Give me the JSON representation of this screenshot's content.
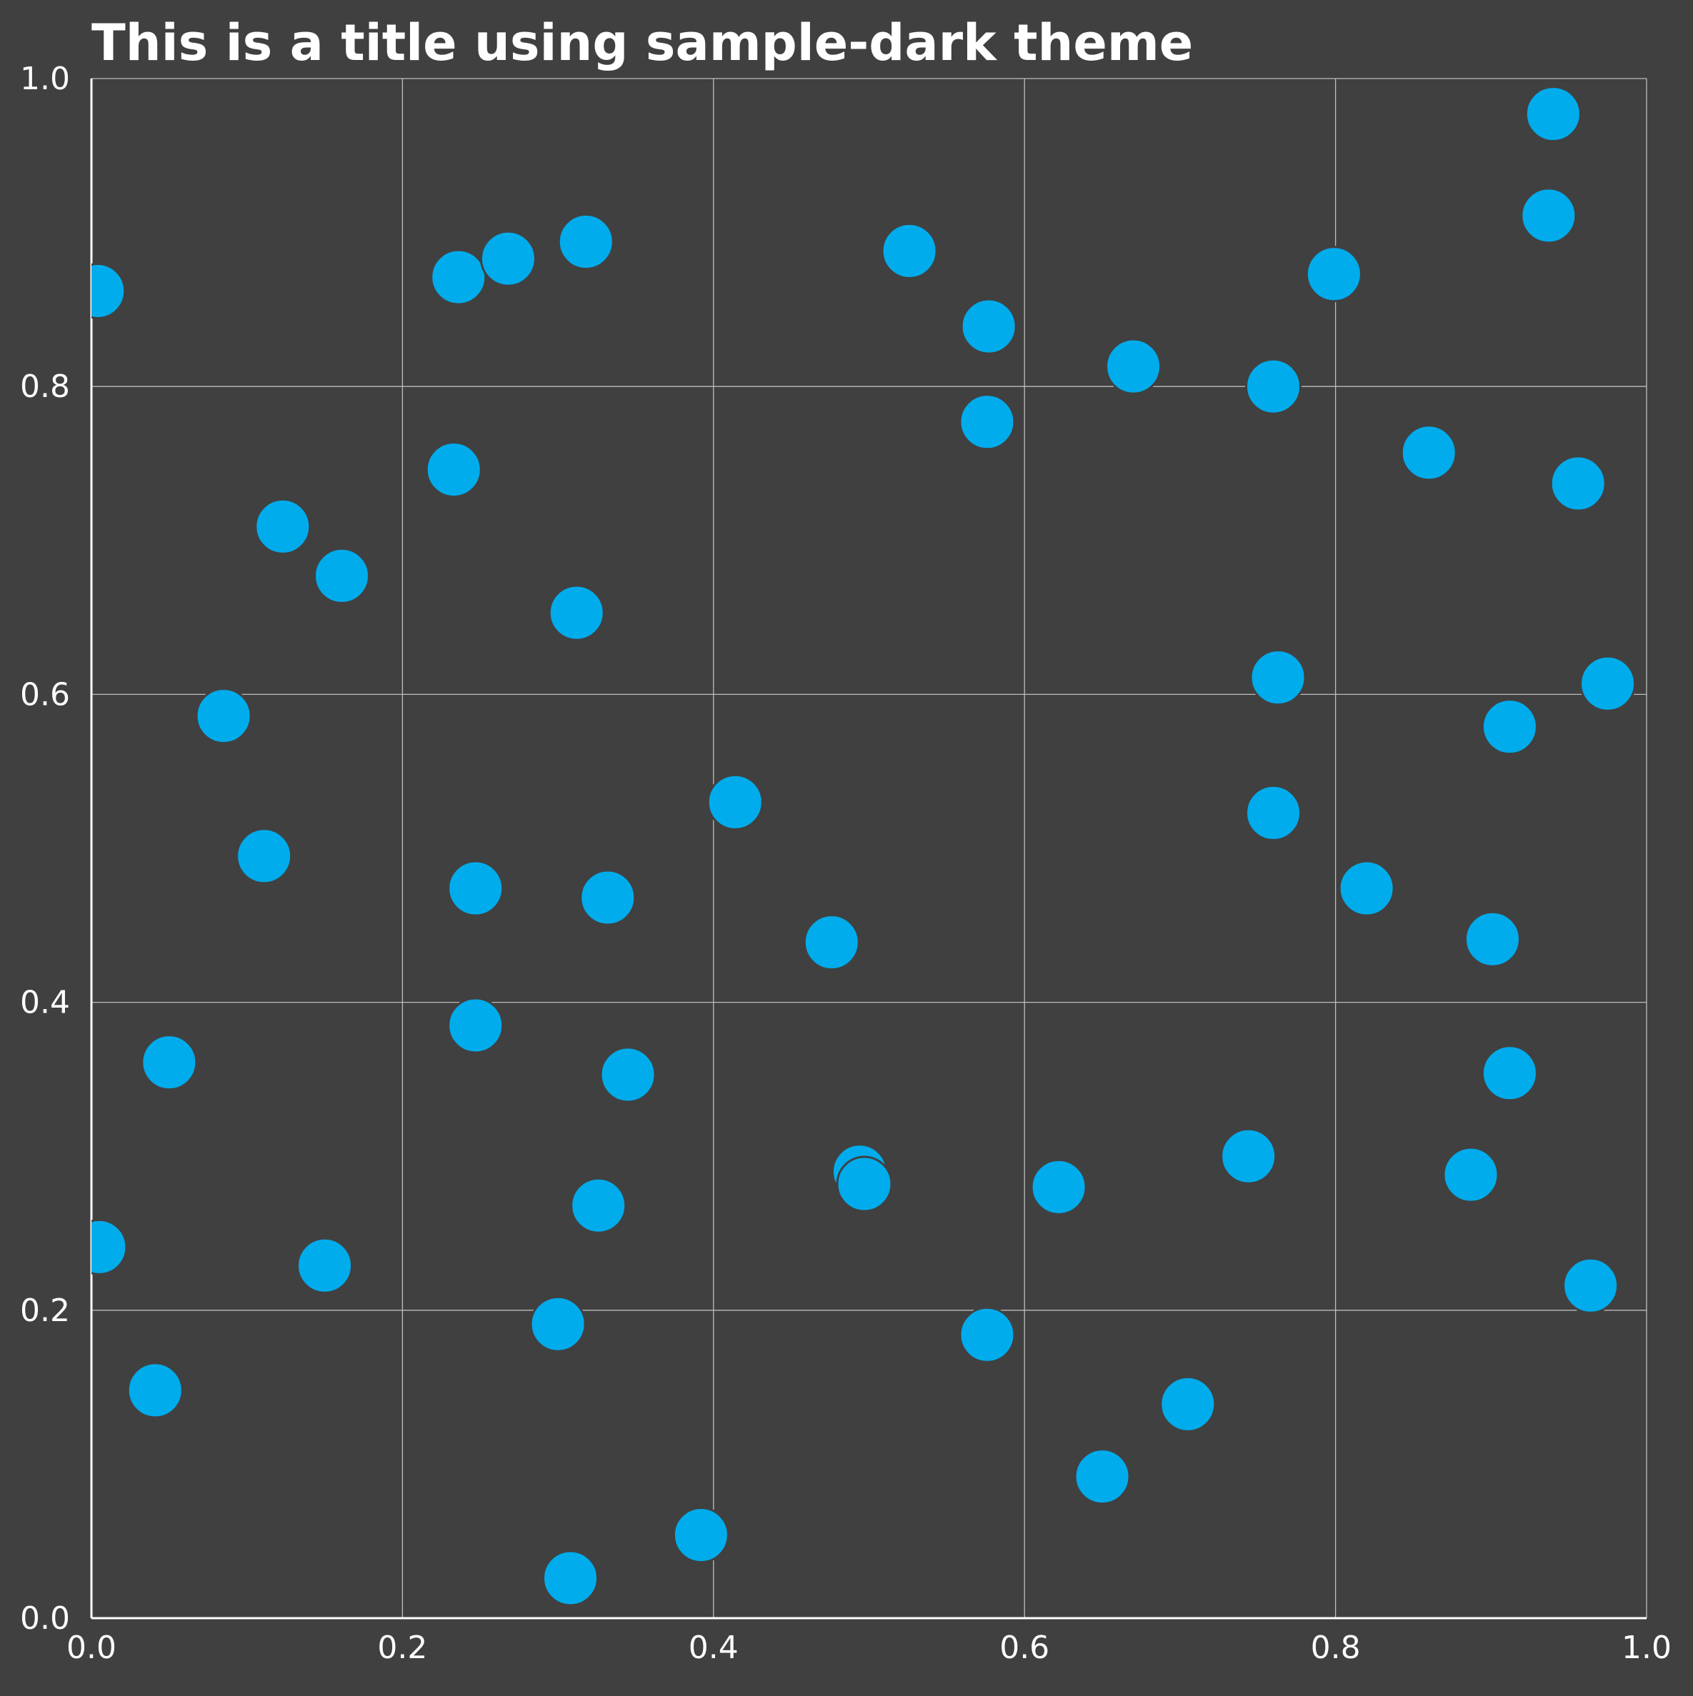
{
  "chart_data": {
    "type": "scatter",
    "title": "This is a title using sample-dark theme",
    "xlabel": "",
    "ylabel": "",
    "xlim": [
      0.0,
      1.0
    ],
    "ylim": [
      0.0,
      1.0
    ],
    "x_ticks": [
      "0.0",
      "0.2",
      "0.4",
      "0.6",
      "0.8",
      "1.0"
    ],
    "y_ticks": [
      "0.0",
      "0.2",
      "0.4",
      "0.6",
      "0.8",
      "1.0"
    ],
    "grid": true,
    "legend": "none",
    "colors": {
      "background": "#404040",
      "point": "#00acec",
      "grid": "#bdbdbd",
      "text": "#ffffff"
    },
    "series": [
      {
        "points": [
          [
            0.004,
            0.862
          ],
          [
            0.236,
            0.871
          ],
          [
            0.268,
            0.883
          ],
          [
            0.318,
            0.894
          ],
          [
            0.526,
            0.888
          ],
          [
            0.577,
            0.839
          ],
          [
            0.576,
            0.777
          ],
          [
            0.67,
            0.813
          ],
          [
            0.76,
            0.8
          ],
          [
            0.799,
            0.873
          ],
          [
            0.94,
            0.977
          ],
          [
            0.937,
            0.911
          ],
          [
            0.86,
            0.757
          ],
          [
            0.956,
            0.737
          ],
          [
            0.233,
            0.746
          ],
          [
            0.123,
            0.709
          ],
          [
            0.161,
            0.677
          ],
          [
            0.312,
            0.653
          ],
          [
            0.085,
            0.586
          ],
          [
            0.763,
            0.611
          ],
          [
            0.975,
            0.607
          ],
          [
            0.912,
            0.579
          ],
          [
            0.414,
            0.53
          ],
          [
            0.111,
            0.495
          ],
          [
            0.247,
            0.474
          ],
          [
            0.332,
            0.468
          ],
          [
            0.476,
            0.439
          ],
          [
            0.76,
            0.523
          ],
          [
            0.82,
            0.474
          ],
          [
            0.901,
            0.441
          ],
          [
            0.05,
            0.361
          ],
          [
            0.247,
            0.385
          ],
          [
            0.345,
            0.353
          ],
          [
            0.912,
            0.354
          ],
          [
            0.494,
            0.29
          ],
          [
            0.497,
            0.282
          ],
          [
            0.622,
            0.28
          ],
          [
            0.744,
            0.3
          ],
          [
            0.887,
            0.288
          ],
          [
            0.005,
            0.241
          ],
          [
            0.15,
            0.229
          ],
          [
            0.326,
            0.268
          ],
          [
            0.3,
            0.191
          ],
          [
            0.576,
            0.184
          ],
          [
            0.964,
            0.216
          ],
          [
            0.041,
            0.148
          ],
          [
            0.705,
            0.139
          ],
          [
            0.65,
            0.092
          ],
          [
            0.392,
            0.054
          ],
          [
            0.308,
            0.026
          ]
        ]
      }
    ]
  }
}
